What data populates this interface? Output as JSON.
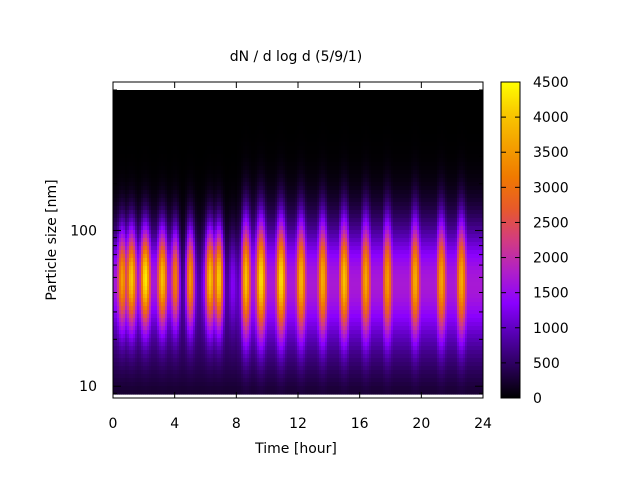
{
  "chart_data": {
    "type": "heatmap",
    "title": "dN / d log d (5/9/1)",
    "xlabel": "Time [hour]",
    "ylabel": "Particle size [nm]",
    "xlim": [
      0,
      24
    ],
    "ylim": [
      8.4,
      900
    ],
    "yscale": "log",
    "x_ticks": [
      0,
      4,
      8,
      12,
      16,
      20,
      24
    ],
    "x_tick_labels": [
      "0",
      "4",
      "8",
      "12",
      "16",
      "20",
      "24"
    ],
    "y_ticks": [
      10,
      100
    ],
    "y_tick_labels": [
      "10",
      "100"
    ],
    "colorbar": {
      "min": 0,
      "max": 4500,
      "ticks": [
        0,
        500,
        1000,
        1500,
        2000,
        2500,
        3000,
        3500,
        4000,
        4500
      ],
      "tick_labels": [
        "0",
        "500",
        "1000",
        "1500",
        "2000",
        "2500",
        "3000",
        "3500",
        "4000",
        "4500"
      ],
      "colormap": [
        "#000000",
        "#2a0059",
        "#5500b0",
        "#8a00ff",
        "#b020c8",
        "#d33c80",
        "#e85a2a",
        "#f07a00",
        "#f4a000",
        "#f8c800",
        "#ffff00"
      ]
    },
    "data_range_nm": [
      9,
      800
    ],
    "mode_diameter_nm": 50,
    "peaks": [
      {
        "time_hour": 0.6,
        "intensity": 3300
      },
      {
        "time_hour": 1.2,
        "intensity": 3800
      },
      {
        "time_hour": 2.1,
        "intensity": 4100
      },
      {
        "time_hour": 3.2,
        "intensity": 3700
      },
      {
        "time_hour": 4.1,
        "intensity": 3200
      },
      {
        "time_hour": 5.0,
        "intensity": 3400
      },
      {
        "time_hour": 6.3,
        "intensity": 3700
      },
      {
        "time_hour": 6.9,
        "intensity": 4000
      },
      {
        "time_hour": 8.6,
        "intensity": 3800
      },
      {
        "time_hour": 9.6,
        "intensity": 4000
      },
      {
        "time_hour": 10.9,
        "intensity": 4000
      },
      {
        "time_hour": 12.2,
        "intensity": 3600
      },
      {
        "time_hour": 13.6,
        "intensity": 3500
      },
      {
        "time_hour": 15.0,
        "intensity": 3700
      },
      {
        "time_hour": 16.4,
        "intensity": 3400
      },
      {
        "time_hour": 17.8,
        "intensity": 3300
      },
      {
        "time_hour": 19.6,
        "intensity": 3500
      },
      {
        "time_hour": 21.3,
        "intensity": 3400
      },
      {
        "time_hour": 22.6,
        "intensity": 3500
      }
    ],
    "dips": [
      {
        "time_hour": 4.5,
        "min_intensity": 1300
      },
      {
        "time_hour": 5.6,
        "min_intensity": 1500
      },
      {
        "time_hour": 7.4,
        "min_intensity": 1400
      },
      {
        "time_hour": 8.1,
        "min_intensity": 1900
      }
    ]
  }
}
